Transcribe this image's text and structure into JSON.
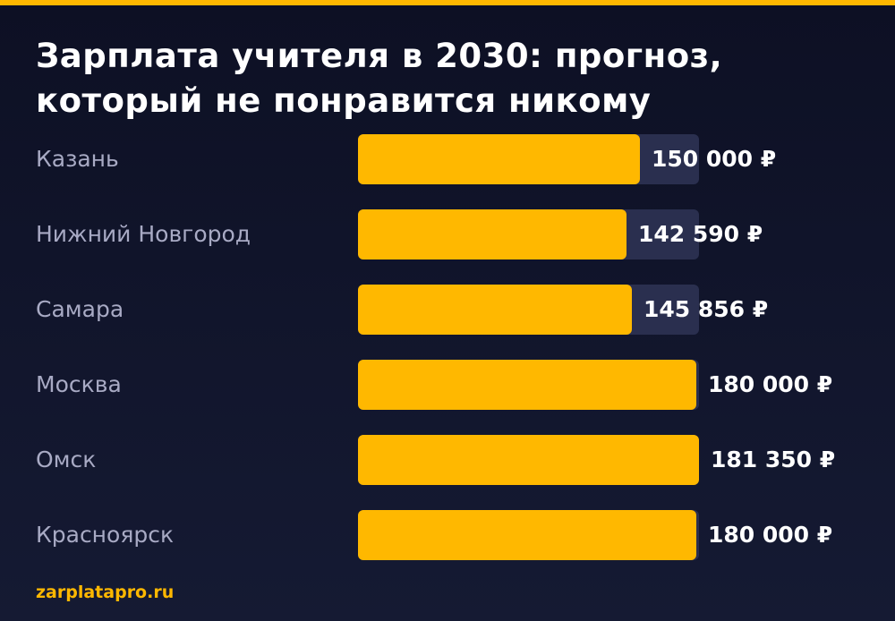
{
  "title_lines": [
    "Зарплата учителя в 2030: прогноз,",
    "который не понравится никому"
  ],
  "brand": "zarplatapro.ru",
  "colors": {
    "bar": "#ffb800",
    "track": "#2a2f4f",
    "background": "#0d1024",
    "label": "#a8aac4"
  },
  "chart_data": {
    "type": "bar",
    "orientation": "horizontal",
    "categories": [
      "Казань",
      "Нижний Новгород",
      "Самара",
      "Москва",
      "Омск",
      "Красноярск"
    ],
    "values": [
      150000,
      142590,
      145856,
      180000,
      181350,
      180000
    ],
    "value_labels": [
      "150 000 ₽",
      "142 590 ₽",
      "145 856 ₽",
      "180 000 ₽",
      "181 350 ₽",
      "180 000 ₽"
    ],
    "xlim": [
      0,
      181350
    ],
    "grid": false,
    "legend": "none"
  }
}
